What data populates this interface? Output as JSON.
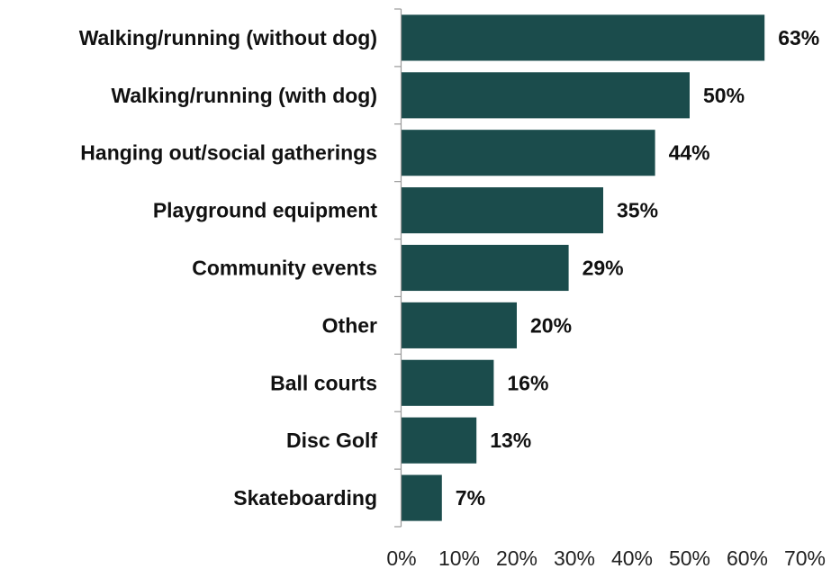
{
  "chart_data": {
    "type": "bar",
    "orientation": "horizontal",
    "categories": [
      "Walking/running (without dog)",
      "Walking/running (with dog)",
      "Hanging out/social gatherings",
      "Playground equipment",
      "Community events",
      "Other",
      "Ball courts",
      "Disc Golf",
      "Skateboarding"
    ],
    "values": [
      63,
      50,
      44,
      35,
      29,
      20,
      16,
      13,
      7
    ],
    "value_labels": [
      "63%",
      "50%",
      "44%",
      "35%",
      "29%",
      "20%",
      "16%",
      "13%",
      "7%"
    ],
    "xlim": [
      0,
      70
    ],
    "x_ticks": [
      0,
      10,
      20,
      30,
      40,
      50,
      60,
      70
    ],
    "x_tick_labels": [
      "0%",
      "10%",
      "20%",
      "30%",
      "40%",
      "50%",
      "60%",
      "70%"
    ],
    "title": "",
    "xlabel": "",
    "ylabel": "",
    "grid": false,
    "legend": "none",
    "bar_color": "#1b4c4c",
    "axis_color": "#9a9a9a"
  }
}
